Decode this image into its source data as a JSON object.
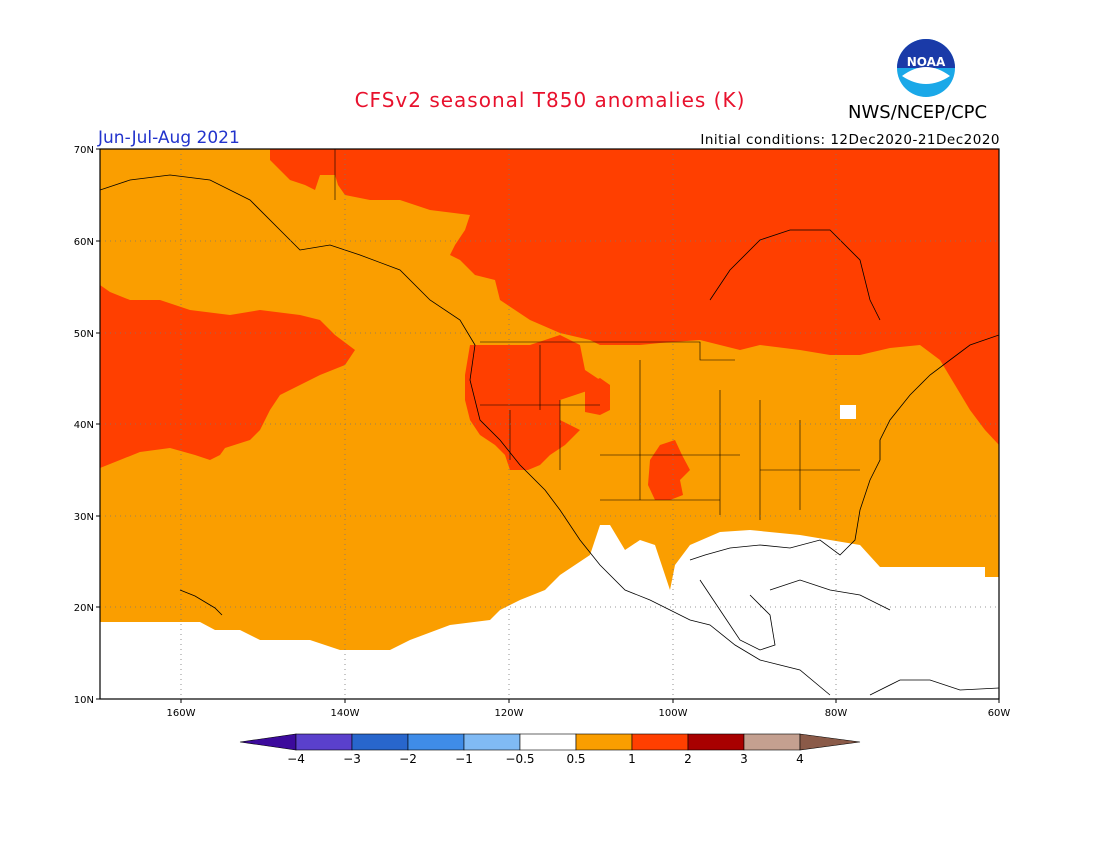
{
  "header": {
    "title": "CFSv2 seasonal T850 anomalies (K)",
    "season": "Jun-Jul-Aug 2021",
    "initial_conditions": "Initial conditions: 12Dec2020-21Dec2020",
    "agency": "NWS/NCEP/CPC",
    "logo_text": "NOAA"
  },
  "axes": {
    "lat_labels": [
      "70N",
      "60N",
      "50N",
      "40N",
      "30N",
      "20N",
      "10N"
    ],
    "lon_labels": [
      "160W",
      "140W",
      "120W",
      "100W",
      "80W",
      "60W"
    ]
  },
  "colorbar": {
    "ticks": [
      "−4",
      "−3",
      "−2",
      "−1",
      "−0.5",
      "0.5",
      "1",
      "2",
      "3",
      "4"
    ],
    "colors": {
      "below_-4": "#3c0a9c",
      "-4_-3": "#5a40cc",
      "-3_-2": "#2866cc",
      "-2_-1": "#3f8ce8",
      "-1_-0.5": "#80baf4",
      "-0.5_0.5": "#ffffff",
      "0.5_1": "#fa9e00",
      "1_2": "#ff3f00",
      "2_3": "#a80000",
      "3_4": "#c4a090",
      "above_4": "#8a5a48"
    }
  }
}
